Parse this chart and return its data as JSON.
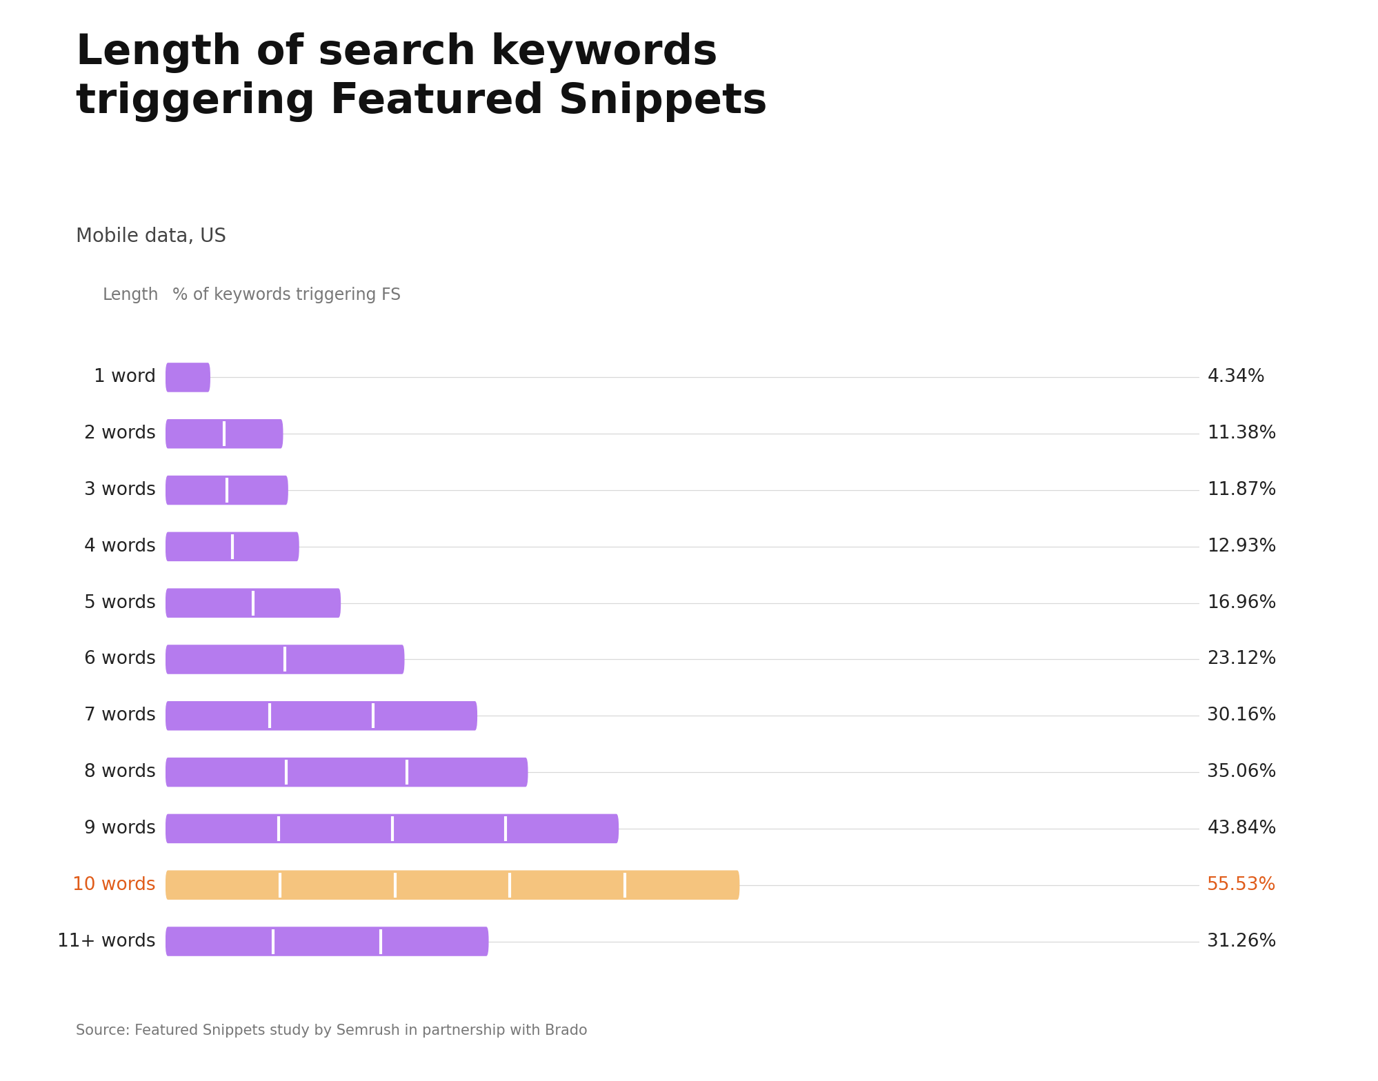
{
  "title": "Length of search keywords\ntriggering Featured Snippets",
  "subtitle": "Mobile data, US",
  "col_label_left": "Length",
  "col_label_right": "% of keywords triggering FS",
  "source": "Source: Featured Snippets study by Semrush in partnership with Brado",
  "categories": [
    "1 word",
    "2 words",
    "3 words",
    "4 words",
    "5 words",
    "6 words",
    "7 words",
    "8 words",
    "9 words",
    "10 words",
    "11+ words"
  ],
  "values": [
    4.34,
    11.38,
    11.87,
    12.93,
    16.96,
    23.12,
    30.16,
    35.06,
    43.84,
    55.53,
    31.26
  ],
  "labels": [
    "4.34%",
    "11.38%",
    "11.87%",
    "12.93%",
    "16.96%",
    "23.12%",
    "30.16%",
    "35.06%",
    "43.84%",
    "55.53%",
    "31.26%"
  ],
  "bar_colors": [
    "#b57bee",
    "#b57bee",
    "#b57bee",
    "#b57bee",
    "#b57bee",
    "#b57bee",
    "#b57bee",
    "#b57bee",
    "#b57bee",
    "#f5c47e",
    "#b57bee"
  ],
  "highlight_index": 9,
  "highlight_label_color": "#e05c1a",
  "normal_label_color": "#222222",
  "bar_height": 0.52,
  "plot_max": 100.0,
  "background_color": "#ffffff",
  "title_fontsize": 44,
  "subtitle_fontsize": 20,
  "value_fontsize": 19,
  "category_fontsize": 19,
  "col_header_fontsize": 17,
  "grid_color": "#d8d8d8",
  "segments_per_bar": [
    1,
    2,
    2,
    2,
    2,
    2,
    3,
    3,
    4,
    5,
    3
  ],
  "source_fontsize": 15
}
